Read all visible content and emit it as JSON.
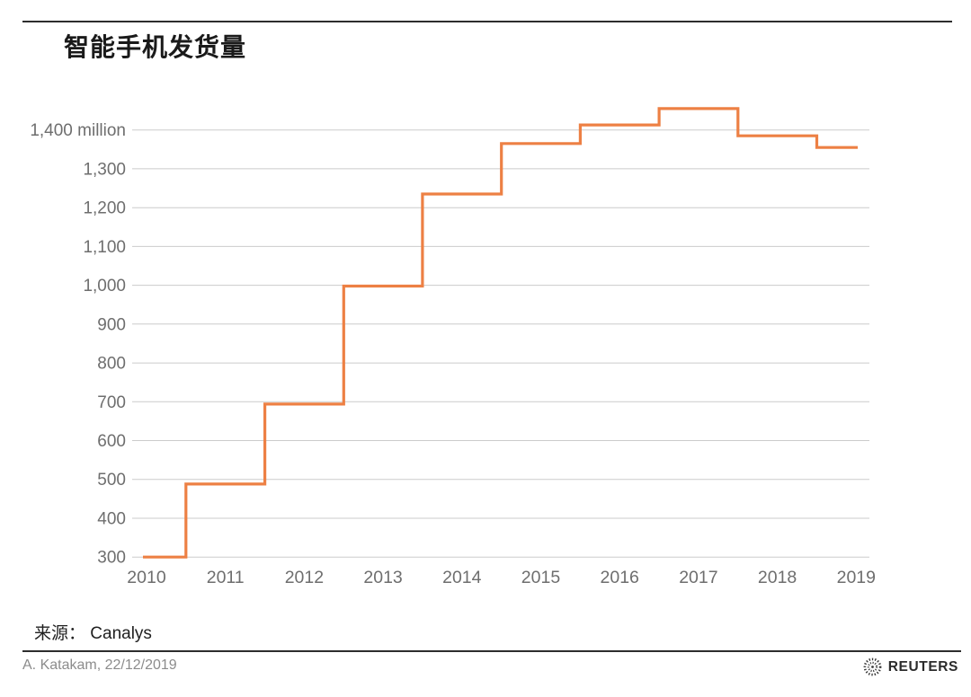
{
  "header": {
    "title": "智能手机发货量"
  },
  "footer": {
    "source": "来源： Canalys",
    "credit": "A. Katakam, 22/12/2019",
    "brand": "REUTERS"
  },
  "chart_data": {
    "type": "line",
    "line_style": "step-mid",
    "title": "智能手机发货量",
    "x": [
      "2010",
      "2011",
      "2012",
      "2013",
      "2014",
      "2015",
      "2016",
      "2017",
      "2018",
      "2019"
    ],
    "values": [
      300,
      488,
      694,
      998,
      1235,
      1365,
      1413,
      1455,
      1385,
      1355
    ],
    "unit": "million",
    "yticks": [
      {
        "value": 1400,
        "label": "1,400 million"
      },
      {
        "value": 1300,
        "label": "1,300"
      },
      {
        "value": 1200,
        "label": "1,200"
      },
      {
        "value": 1100,
        "label": "1,100"
      },
      {
        "value": 1000,
        "label": "1,000"
      },
      {
        "value": 900,
        "label": "900"
      },
      {
        "value": 800,
        "label": "800"
      },
      {
        "value": 700,
        "label": "700"
      },
      {
        "value": 600,
        "label": "600"
      },
      {
        "value": 500,
        "label": "500"
      },
      {
        "value": 400,
        "label": "400"
      },
      {
        "value": 300,
        "label": "300"
      }
    ],
    "ylim": [
      300,
      1480
    ],
    "grid": "horizontal",
    "legend": "none",
    "line_color": "#ED8044",
    "grid_color": "#cbcbcb",
    "tick_label_color": "#6e6e6e",
    "source": "Canalys"
  }
}
